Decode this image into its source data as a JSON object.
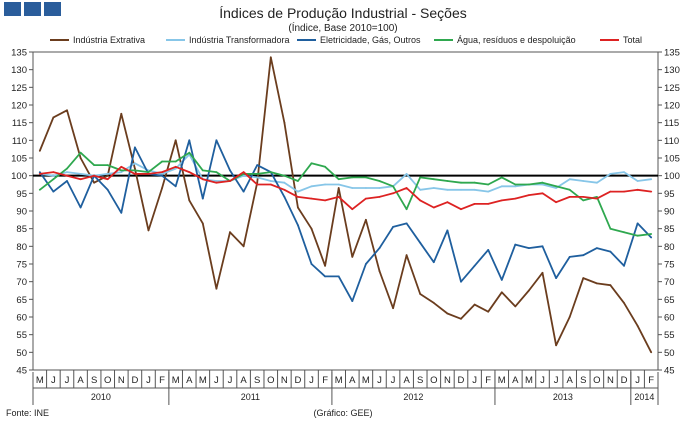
{
  "chart_data": {
    "type": "line",
    "title": "Índices de Produção Industrial - Seções",
    "subtitle": "(Índice, Base 2010=100)",
    "ylim": [
      45,
      135
    ],
    "yticks": [
      45,
      50,
      55,
      60,
      65,
      70,
      75,
      80,
      85,
      90,
      95,
      100,
      105,
      110,
      115,
      120,
      125,
      130,
      135
    ],
    "reference_line": 100,
    "month_labels": [
      "M",
      "J",
      "J",
      "A",
      "S",
      "O",
      "N",
      "D",
      "J",
      "F",
      "M",
      "A",
      "M",
      "J",
      "J",
      "A",
      "S",
      "O",
      "N",
      "D",
      "J",
      "F",
      "M",
      "A",
      "M",
      "J",
      "J",
      "A",
      "S",
      "O",
      "N",
      "D",
      "J",
      "F",
      "M",
      "A",
      "M",
      "J",
      "J",
      "A",
      "S",
      "O",
      "N",
      "D",
      "J",
      "F"
    ],
    "years": [
      {
        "label": "2010",
        "start": 0,
        "end": 9
      },
      {
        "label": "2011",
        "start": 10,
        "end": 21
      },
      {
        "label": "2012",
        "start": 22,
        "end": 33
      },
      {
        "label": "2013",
        "start": 34,
        "end": 43
      },
      {
        "label": "2014",
        "start": 44,
        "end": 45
      }
    ],
    "series": [
      {
        "name": "Indústria Extrativa",
        "color": "#6b3d1e",
        "values": [
          107,
          116.5,
          118.5,
          105,
          98,
          100,
          117.5,
          102,
          84.5,
          96.5,
          110,
          93,
          86.5,
          68,
          84,
          80,
          98,
          133.5,
          115,
          91,
          85,
          74.5,
          96.5,
          77,
          87.5,
          73,
          62.5,
          77.5,
          66.5,
          64,
          61,
          59.5,
          63.5,
          61.5,
          67,
          63,
          67.5,
          72.5,
          52,
          60,
          71,
          69.5,
          69,
          64,
          57.5,
          50
        ]
      },
      {
        "name": "Indústria Transformadora",
        "color": "#87c6e8",
        "values": [
          100.5,
          100,
          101,
          100.5,
          100,
          100.5,
          101,
          103.5,
          101.5,
          100.5,
          102,
          106,
          99,
          98.5,
          98.5,
          100,
          99.5,
          98.5,
          98,
          95.5,
          97,
          97.5,
          97.5,
          96.5,
          96.5,
          96.5,
          97,
          100.5,
          96,
          96.5,
          96,
          96,
          96,
          95.5,
          97,
          97,
          97.5,
          97.5,
          96.5,
          99,
          98.5,
          98,
          100.5,
          101,
          98.5,
          99
        ]
      },
      {
        "name": "Eletricidade, Gás, Outros",
        "color": "#1f5f9e",
        "values": [
          101,
          95.5,
          98.5,
          91,
          100,
          96,
          89.5,
          108,
          100.5,
          100,
          97,
          110,
          93.5,
          110,
          101.5,
          95.5,
          103,
          101,
          94,
          86,
          75,
          71.5,
          71.5,
          64.5,
          75,
          79.5,
          85.5,
          86.5,
          81,
          75.5,
          84.5,
          70,
          74.5,
          79,
          70.5,
          80.5,
          79.5,
          80,
          71,
          77,
          77.5,
          79.5,
          78.5,
          74.5,
          86.5,
          82.5
        ]
      },
      {
        "name": "Água, resíduos e despoluição",
        "color": "#2fa84f",
        "values": [
          96,
          99,
          102,
          106.5,
          103,
          103,
          101.5,
          101.5,
          101,
          104,
          104,
          106.5,
          101.5,
          101,
          98.5,
          100.5,
          100.5,
          101,
          100,
          98.5,
          103.5,
          102.5,
          99,
          99.5,
          99.5,
          98.5,
          97,
          90.5,
          99.5,
          99,
          98.5,
          98,
          98,
          97.5,
          99.5,
          97.5,
          97.5,
          98,
          97,
          96,
          93,
          94,
          85,
          84,
          83,
          83.5
        ]
      },
      {
        "name": "Total",
        "color": "#dd2222",
        "values": [
          100.5,
          101,
          100,
          99,
          100,
          99,
          102.5,
          100.5,
          100.5,
          101,
          102.5,
          101,
          99,
          98,
          98.5,
          101,
          97.5,
          97.5,
          96,
          94,
          93.5,
          93,
          94,
          90.5,
          93.5,
          94,
          95,
          96.5,
          93,
          91,
          92.5,
          90.5,
          92,
          92,
          93,
          93.5,
          94.5,
          95,
          92.5,
          94,
          94,
          93.5,
          95.5,
          95.5,
          96,
          95.5
        ]
      }
    ]
  },
  "footer": {
    "source": "Fonte: INE",
    "credit": "(Gráfico: GEE)"
  }
}
